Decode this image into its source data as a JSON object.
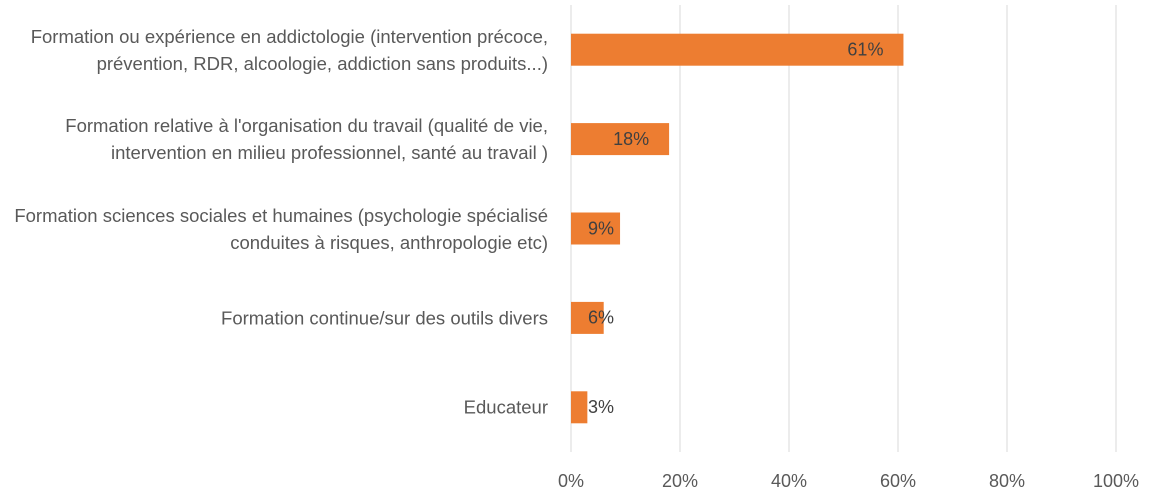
{
  "chart_data": {
    "type": "barh",
    "categories": [
      "Formation ou expérience en addictologie (intervention précoce, prévention, RDR, alcoologie, addiction sans produits...)",
      "Formation relative à l'organisation du travail (qualité de vie, intervention en milieu professionnel, santé au travail )",
      "Formation sciences sociales et humaines (psychologie spécialisé conduites à risques, anthropologie etc)",
      "Formation continue/sur des outils divers",
      "Educateur"
    ],
    "values": [
      61,
      18,
      9,
      6,
      3
    ],
    "value_labels": [
      "61%",
      "18%",
      "9%",
      "6%",
      "3%"
    ],
    "color": "#ed7d31",
    "xlim": [
      0,
      100
    ],
    "xticks": [
      {
        "value": 0,
        "label": "0%"
      },
      {
        "value": 20,
        "label": "20%"
      },
      {
        "value": 40,
        "label": "40%"
      },
      {
        "value": 60,
        "label": "60%"
      },
      {
        "value": 80,
        "label": "80%"
      },
      {
        "value": 100,
        "label": "100%"
      }
    ],
    "grid": true
  }
}
